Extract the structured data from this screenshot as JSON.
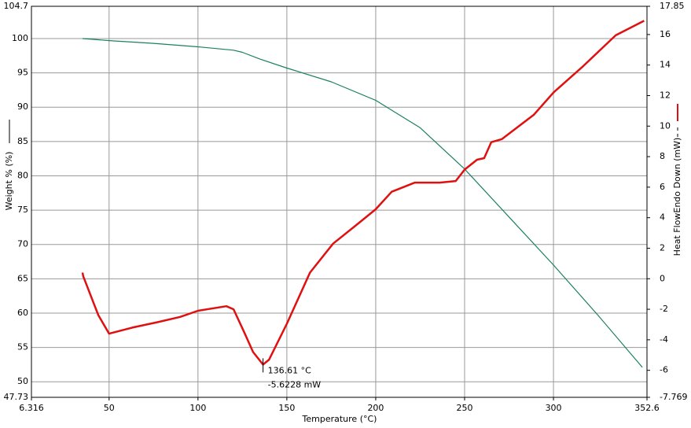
{
  "chart_data": {
    "type": "line",
    "xlabel": "Temperature (°C)",
    "ylabel": "Weight % (%)",
    "y2label": "Heat FlowEndo Down (mW)",
    "xlim": [
      6.316,
      352.6
    ],
    "xticks": [
      6.316,
      50,
      100,
      150,
      200,
      250,
      300,
      352.6
    ],
    "ylim": [
      47.73,
      104.7
    ],
    "yticks": [
      47.73,
      50,
      55,
      60,
      65,
      70,
      75,
      80,
      85,
      90,
      95,
      100,
      104.7
    ],
    "y2lim": [
      -7.769,
      17.85
    ],
    "y2ticks": [
      -7.769,
      -6,
      -4,
      -2,
      0,
      2,
      4,
      6,
      8,
      10,
      12,
      14,
      16,
      17.85
    ],
    "grid": true,
    "series": [
      {
        "name": "Weight",
        "color": "#1a8060",
        "axis": "y",
        "x": [
          35,
          50,
          75,
          100,
          120,
          125,
          135,
          150,
          175,
          200,
          225,
          250,
          275,
          300,
          325,
          350
        ],
        "values": [
          100,
          99.7,
          99.3,
          98.8,
          98.3,
          98.0,
          97.0,
          95.7,
          93.7,
          91.0,
          87.0,
          81.0,
          74.0,
          67.0,
          59.7,
          52.1
        ]
      },
      {
        "name": "Heat Flow",
        "color": "#e01010",
        "axis": "y2",
        "x": [
          35,
          35.5,
          41,
          44,
          50,
          63,
          77,
          90,
          100,
          116,
          120,
          126,
          131,
          136.61,
          140,
          150,
          163,
          176,
          190,
          200,
          209,
          222,
          236,
          245,
          250,
          257,
          261,
          265,
          271,
          289,
          300,
          316,
          335,
          351
        ],
        "values": [
          0.4,
          0.15,
          -1.5,
          -2.4,
          -3.6,
          -3.2,
          -2.85,
          -2.5,
          -2.1,
          -1.8,
          -2.0,
          -3.5,
          -4.8,
          -5.6228,
          -5.3,
          -2.95,
          0.4,
          2.3,
          3.6,
          4.55,
          5.7,
          6.3,
          6.3,
          6.4,
          7.15,
          7.8,
          7.9,
          8.95,
          9.15,
          10.75,
          12.2,
          13.85,
          15.95,
          16.9
        ]
      }
    ],
    "annotations": [
      "136.61 °C",
      "-5.6228 mW"
    ]
  }
}
